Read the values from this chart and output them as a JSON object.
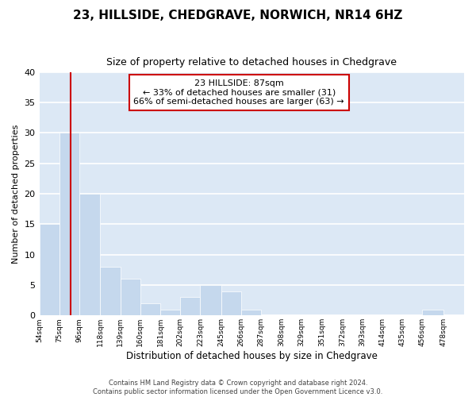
{
  "title": "23, HILLSIDE, CHEDGRAVE, NORWICH, NR14 6HZ",
  "subtitle": "Size of property relative to detached houses in Chedgrave",
  "bar_values": [
    15,
    30,
    20,
    8,
    6,
    2,
    1,
    3,
    5,
    4,
    1,
    0,
    0,
    0,
    0,
    0,
    0,
    0,
    0,
    1,
    0
  ],
  "bin_labels": [
    "54sqm",
    "75sqm",
    "96sqm",
    "118sqm",
    "139sqm",
    "160sqm",
    "181sqm",
    "202sqm",
    "223sqm",
    "245sqm",
    "266sqm",
    "287sqm",
    "308sqm",
    "329sqm",
    "351sqm",
    "372sqm",
    "393sqm",
    "414sqm",
    "435sqm",
    "456sqm",
    "478sqm"
  ],
  "bar_color": "#c5d8ed",
  "bar_edge_color": "white",
  "grid_color": "#ffffff",
  "bg_color": "#dce8f5",
  "ylabel": "Number of detached properties",
  "xlabel": "Distribution of detached houses by size in Chedgrave",
  "ylim": [
    0,
    40
  ],
  "yticks": [
    0,
    5,
    10,
    15,
    20,
    25,
    30,
    35,
    40
  ],
  "red_line_x": 87,
  "bin_edges": [
    54,
    75,
    96,
    118,
    139,
    160,
    181,
    202,
    223,
    245,
    266,
    287,
    308,
    329,
    351,
    372,
    393,
    414,
    435,
    456,
    478,
    500
  ],
  "annotation_text": "23 HILLSIDE: 87sqm\n← 33% of detached houses are smaller (31)\n66% of semi-detached houses are larger (63) →",
  "annotation_box_color": "#ffffff",
  "annotation_box_edge": "#cc0000",
  "footer": "Contains HM Land Registry data © Crown copyright and database right 2024.\nContains public sector information licensed under the Open Government Licence v3.0."
}
